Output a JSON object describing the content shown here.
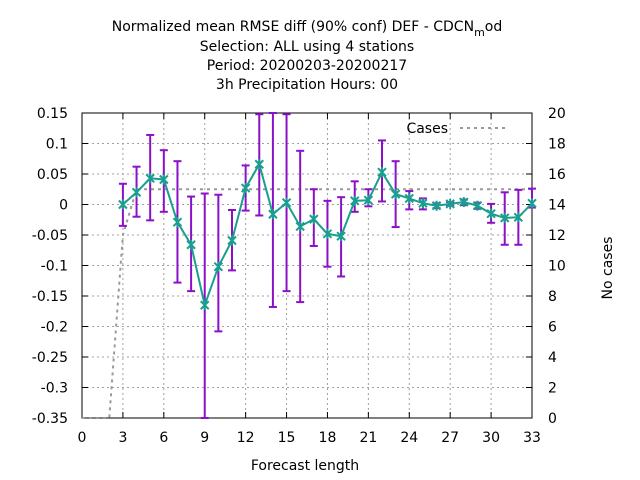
{
  "chart_data": {
    "type": "line",
    "title_lines": [
      "Normalized mean RMSE diff (90% conf) DEF - CDCN",
      "Selection: ALL using     4 stations",
      "Period: 20200203-20200217",
      "3h Precipitation   Hours:  00"
    ],
    "title_subscript": "m",
    "title_subscript_tail": "od",
    "xlabel": "Forecast length",
    "ylabel": "",
    "y2label": "No cases",
    "xlim": [
      0,
      33
    ],
    "ylim": [
      -0.35,
      0.15
    ],
    "y2lim": [
      0,
      20
    ],
    "x_ticks": [
      0,
      3,
      6,
      9,
      12,
      15,
      18,
      21,
      24,
      27,
      30,
      33
    ],
    "y_ticks": [
      -0.35,
      -0.3,
      -0.25,
      -0.2,
      -0.15,
      -0.1,
      -0.05,
      0,
      0.05,
      0.1,
      0.15
    ],
    "y_tick_labels": [
      "-0.35",
      "-0.3",
      "-0.25",
      "-0.2",
      "-0.15",
      "-0.1",
      "-0.05",
      "0",
      "0.05",
      "0.1",
      "0.15"
    ],
    "y2_ticks": [
      0,
      2,
      4,
      6,
      8,
      10,
      12,
      14,
      16,
      18,
      20
    ],
    "grid": true,
    "legend_position": "top-right",
    "legend": [
      {
        "label": "Cases",
        "style": "dashed",
        "color": "#999999"
      }
    ],
    "series": [
      {
        "style": "line-markers",
        "color": "#1a9e8f",
        "marker_color": "#1a9e8f",
        "errorbar_color": "#8c10c8",
        "x": [
          3,
          4,
          5,
          6,
          7,
          8,
          9,
          10,
          11,
          12,
          13,
          14,
          15,
          16,
          17,
          18,
          19,
          20,
          21,
          22,
          23,
          24,
          25,
          26,
          27,
          28,
          29,
          30,
          31,
          32,
          33
        ],
        "y": [
          0.0,
          0.02,
          0.043,
          0.041,
          -0.029,
          -0.066,
          -0.165,
          -0.102,
          -0.059,
          0.027,
          0.066,
          -0.016,
          0.003,
          -0.036,
          -0.024,
          -0.048,
          -0.052,
          0.006,
          0.007,
          0.053,
          0.017,
          0.01,
          0.002,
          -0.002,
          0.001,
          0.004,
          -0.002,
          -0.015,
          -0.022,
          -0.021,
          0.002
        ],
        "err_low": [
          -0.035,
          -0.02,
          -0.026,
          -0.012,
          -0.128,
          -0.142,
          -0.35,
          -0.208,
          -0.108,
          -0.01,
          -0.018,
          -0.168,
          -0.142,
          -0.16,
          -0.068,
          -0.102,
          -0.118,
          -0.012,
          -0.003,
          0.005,
          -0.037,
          -0.008,
          -0.008,
          -0.006,
          -0.002,
          -0.001,
          -0.007,
          -0.03,
          -0.066,
          -0.066,
          -0.005
        ],
        "err_high": [
          0.034,
          0.062,
          0.114,
          0.089,
          0.071,
          0.013,
          0.018,
          0.016,
          -0.009,
          0.064,
          0.148,
          0.15,
          0.148,
          0.088,
          0.025,
          0.006,
          0.012,
          0.038,
          0.025,
          0.105,
          0.071,
          0.022,
          0.01,
          0.002,
          0.004,
          0.008,
          0.003,
          0.001,
          0.02,
          0.024,
          0.026
        ]
      },
      {
        "name": "Cases",
        "axis": "y2",
        "style": "dashed",
        "color": "#999999",
        "x": [
          0,
          1,
          2,
          3,
          4,
          5,
          6,
          7,
          8,
          9,
          10,
          11,
          12,
          13,
          14,
          15,
          16,
          17,
          18,
          19,
          20,
          21,
          22,
          23,
          24,
          25,
          26,
          27,
          28,
          29,
          30,
          31,
          32,
          33
        ],
        "values": [
          0,
          0,
          0,
          12,
          15,
          15,
          15,
          15,
          15,
          15,
          15,
          15,
          15,
          15,
          15,
          15,
          15,
          15,
          15,
          15,
          15,
          15,
          15,
          15,
          15,
          15,
          15,
          15,
          15,
          15,
          15,
          15,
          15,
          15
        ]
      }
    ]
  }
}
